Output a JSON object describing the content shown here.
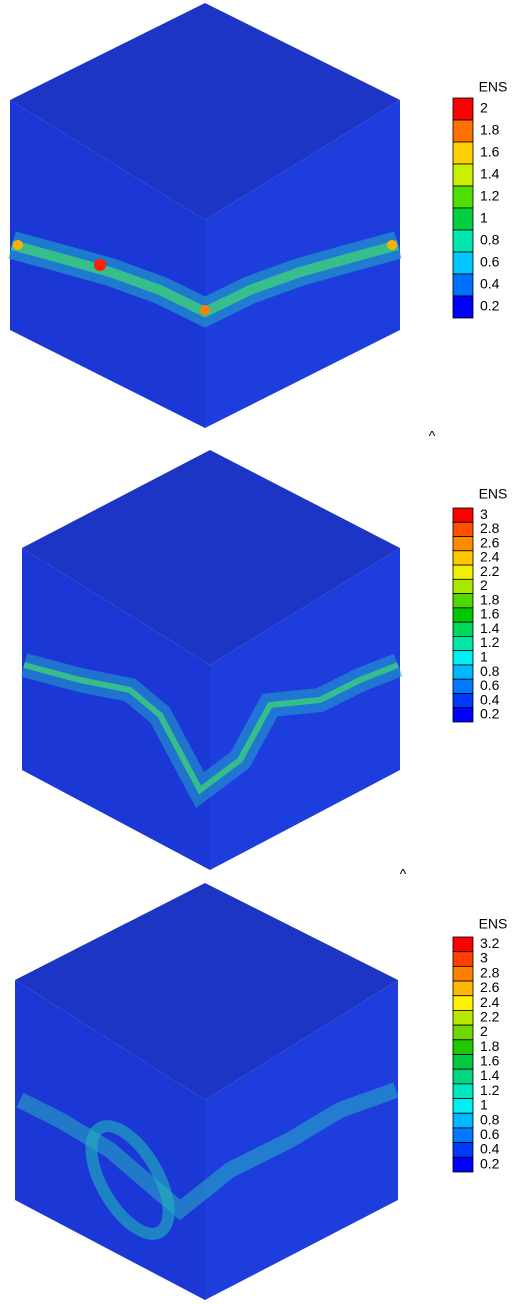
{
  "panels": [
    {
      "colorbar": {
        "title": "ENS",
        "labels": [
          "2",
          "1.8",
          "1.6",
          "1.4",
          "1.2",
          "1",
          "0.8",
          "0.6",
          "0.4",
          "0.2"
        ],
        "colors": [
          "#ff0000",
          "#ff7000",
          "#ffd000",
          "#c8f000",
          "#50e000",
          "#00d040",
          "#00e8b0",
          "#00c8ff",
          "#0070ff",
          "#0000ff"
        ]
      },
      "axis_mark": "^"
    },
    {
      "colorbar": {
        "title": "ENS",
        "labels": [
          "3",
          "2.8",
          "2.6",
          "2.4",
          "2.2",
          "2",
          "1.8",
          "1.6",
          "1.4",
          "1.2",
          "1",
          "0.8",
          "0.6",
          "0.4",
          "0.2"
        ],
        "colors": [
          "#ff0000",
          "#ff5000",
          "#ff8c00",
          "#ffc800",
          "#f0f000",
          "#a8e800",
          "#50d800",
          "#00c800",
          "#00d860",
          "#00e8a8",
          "#00f0f0",
          "#00b8ff",
          "#0078ff",
          "#0038ff",
          "#0000ff"
        ]
      },
      "axis_mark": "^"
    },
    {
      "colorbar": {
        "title": "ENS",
        "labels": [
          "3.2",
          "3",
          "2.8",
          "2.6",
          "2.4",
          "2.2",
          "2",
          "1.8",
          "1.6",
          "1.4",
          "1.2",
          "1",
          "0.8",
          "0.6",
          "0.4",
          "0.2"
        ],
        "colors": [
          "#ff0000",
          "#ff4000",
          "#ff8000",
          "#ffb800",
          "#fff000",
          "#b8e800",
          "#70d800",
          "#20c800",
          "#00c840",
          "#00d880",
          "#00e8c0",
          "#00f0f0",
          "#00b8ff",
          "#0078ff",
          "#0038ff",
          "#0000ff"
        ]
      }
    }
  ]
}
